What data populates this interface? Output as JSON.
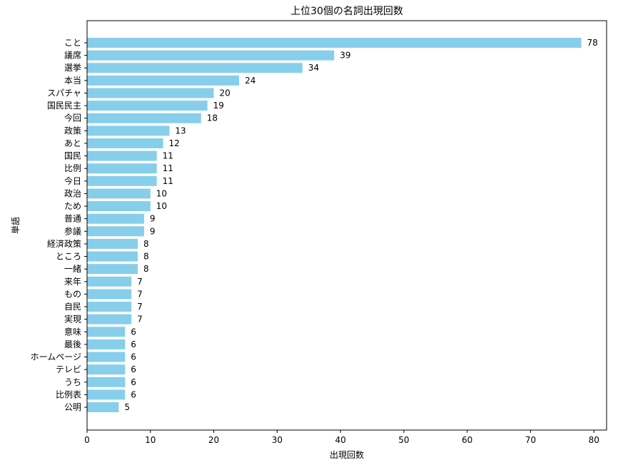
{
  "chart_data": {
    "type": "bar",
    "orientation": "horizontal",
    "title": "上位30個の名詞出現回数",
    "xlabel": "出現回数",
    "ylabel": "単語",
    "xlim": [
      0,
      82
    ],
    "xticks": [
      0,
      10,
      20,
      30,
      40,
      50,
      60,
      70,
      80
    ],
    "grid": false,
    "bar_color": "#87CEEB",
    "categories": [
      "こと",
      "議席",
      "選挙",
      "本当",
      "スパチャ",
      "国民民主",
      "今回",
      "政策",
      "あと",
      "国民",
      "比例",
      "今日",
      "政治",
      "ため",
      "普通",
      "参議",
      "経済政策",
      "ところ",
      "一緒",
      "来年",
      "もの",
      "自民",
      "実現",
      "意味",
      "最後",
      "ホームページ",
      "テレビ",
      "うち",
      "比例表",
      "公明"
    ],
    "values": [
      78,
      39,
      34,
      24,
      20,
      19,
      18,
      13,
      12,
      11,
      11,
      11,
      10,
      10,
      9,
      9,
      8,
      8,
      8,
      7,
      7,
      7,
      7,
      6,
      6,
      6,
      6,
      6,
      6,
      5
    ]
  }
}
